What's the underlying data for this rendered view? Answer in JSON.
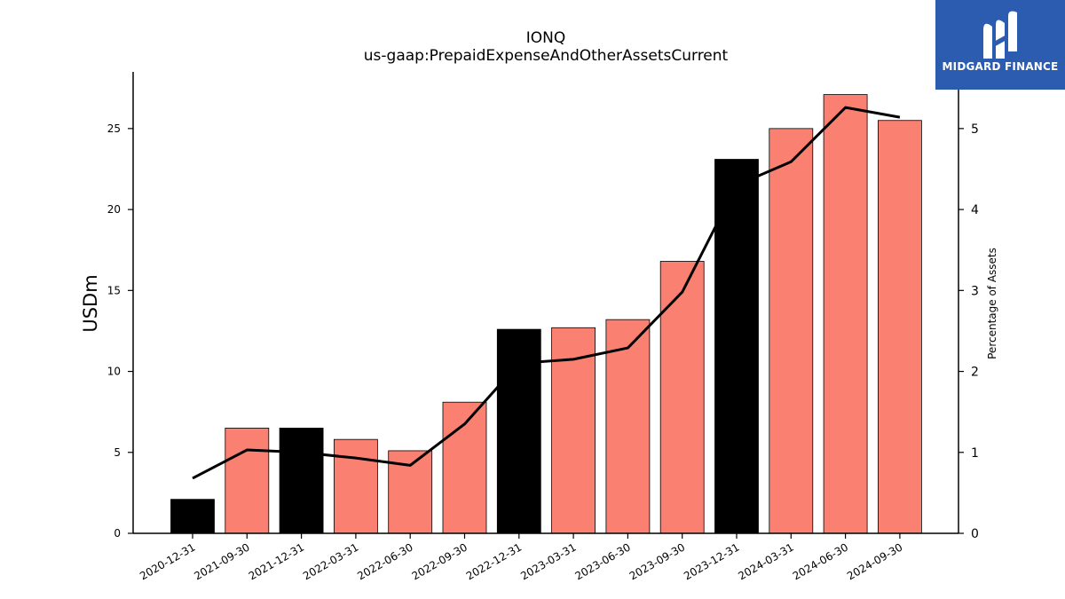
{
  "chart_data": {
    "type": "bar",
    "title": "IONQ",
    "subtitle": "us-gaap:PrepaidExpenseAndOtherAssetsCurrent",
    "ylabel": "USDm",
    "ylabel_right": "Percentage of Assets",
    "categories": [
      "2020-12-31",
      "2021-09-30",
      "2021-12-31",
      "2022-03-31",
      "2022-06-30",
      "2022-09-30",
      "2022-12-31",
      "2023-03-31",
      "2023-06-30",
      "2023-09-30",
      "2023-12-31",
      "2024-03-31",
      "2024-06-30",
      "2024-09-30"
    ],
    "values": [
      2.1,
      6.5,
      6.5,
      5.8,
      5.1,
      8.1,
      12.6,
      12.7,
      13.2,
      16.8,
      23.1,
      25.0,
      27.1,
      25.5
    ],
    "bar_colors": [
      "#000000",
      "#fa8072",
      "#000000",
      "#fa8072",
      "#fa8072",
      "#fa8072",
      "#000000",
      "#fa8072",
      "#fa8072",
      "#fa8072",
      "#000000",
      "#fa8072",
      "#fa8072",
      "#fa8072"
    ],
    "line_values": [
      0.68,
      1.03,
      1.0,
      0.93,
      0.84,
      1.35,
      2.1,
      2.15,
      2.29,
      2.98,
      4.3,
      4.59,
      5.26,
      5.14
    ],
    "line_color": "#000000",
    "ylim": [
      0,
      28.5
    ],
    "ylim_right": [
      0,
      5.7
    ],
    "yticks": [
      0,
      5,
      10,
      15,
      20,
      25
    ],
    "yticks_right": [
      0,
      1,
      2,
      3,
      4,
      5
    ],
    "grid": false
  },
  "logo": {
    "text": "MIDGARD FINANCE",
    "icon": "midgard-logo-icon",
    "background": "#2b5caf"
  }
}
